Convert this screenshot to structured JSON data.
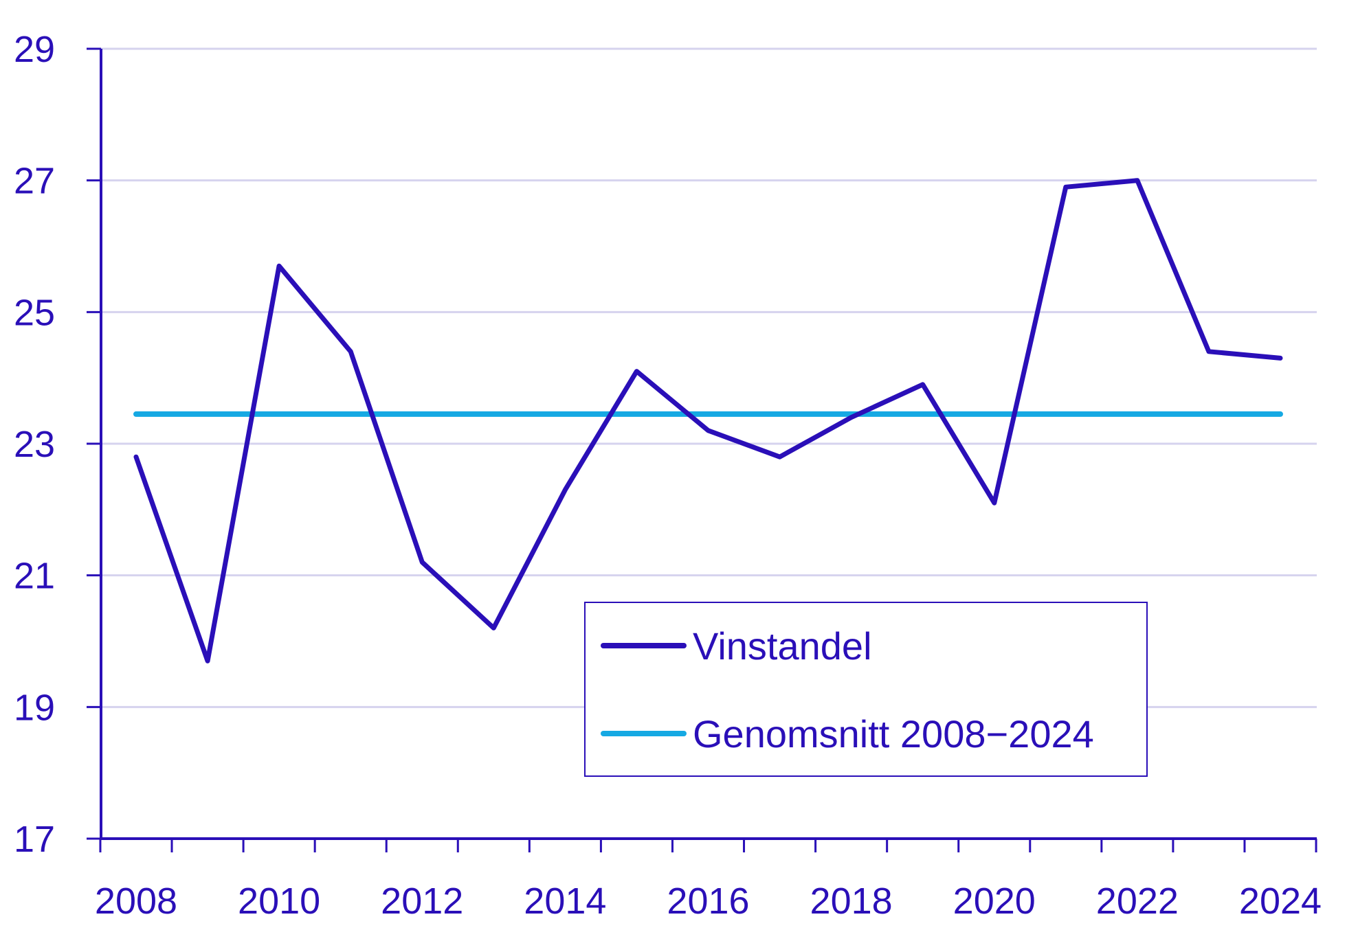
{
  "chart_data": {
    "type": "line",
    "title": "",
    "xlabel": "",
    "ylabel": "",
    "x": [
      2008,
      2009,
      2010,
      2011,
      2012,
      2013,
      2014,
      2015,
      2016,
      2017,
      2018,
      2019,
      2020,
      2021,
      2022,
      2023,
      2024
    ],
    "x_ticks": [
      "2008",
      "2010",
      "2012",
      "2014",
      "2016",
      "2018",
      "2020",
      "2022",
      "2024"
    ],
    "y_ticks": [
      "17",
      "19",
      "21",
      "23",
      "25",
      "27",
      "29"
    ],
    "ylim": [
      17,
      29
    ],
    "grid": true,
    "legend_position": "bottom-center",
    "series": [
      {
        "name": "Vinstandel",
        "color": "#2a0fb8",
        "values": [
          22.8,
          19.7,
          25.7,
          24.4,
          21.2,
          20.2,
          22.3,
          24.1,
          23.2,
          22.8,
          23.4,
          23.9,
          22.1,
          26.9,
          27.0,
          24.4,
          24.3
        ]
      },
      {
        "name": "Genomsnitt 2008−2024",
        "color": "#16a9e3",
        "values": [
          23.45,
          23.45,
          23.45,
          23.45,
          23.45,
          23.45,
          23.45,
          23.45,
          23.45,
          23.45,
          23.45,
          23.45,
          23.45,
          23.45,
          23.45,
          23.45,
          23.45
        ]
      }
    ],
    "colors": {
      "axis": "#2a0fb8",
      "grid": "#d6d3ee",
      "text": "#2a0fb8"
    }
  }
}
